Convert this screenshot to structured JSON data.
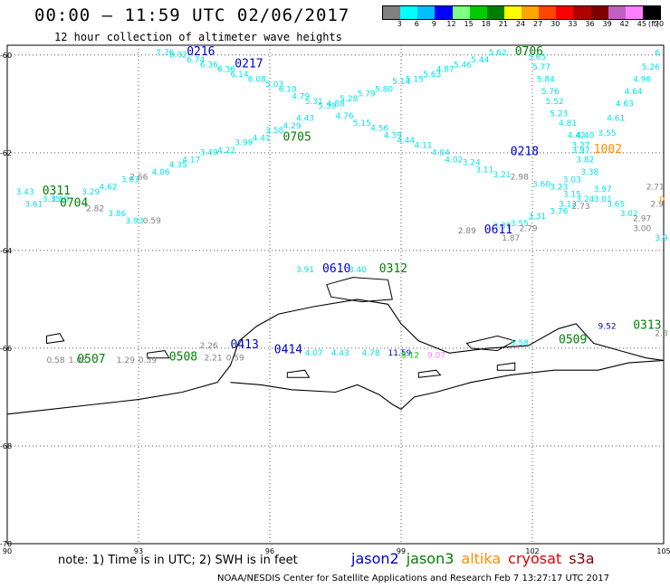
{
  "title": "00:00 – 11:59 UTC 02/06/2017",
  "subtitle": "12 hour collection of altimeter wave heights",
  "colorbar": {
    "colors": [
      "#808080",
      "#00ffff",
      "#00bfff",
      "#0000ff",
      "#80ff80",
      "#00cc00",
      "#008000",
      "#ffff00",
      "#ffa500",
      "#ff4500",
      "#ff0000",
      "#b00000",
      "#800000",
      "#c060c0",
      "#ff80ff",
      "#000000"
    ],
    "labels": [
      "3",
      "6",
      "9",
      "12",
      "15",
      "18",
      "21",
      "24",
      "27",
      "30",
      "33",
      "36",
      "39",
      "42",
      "45",
      "70",
      "(ft)"
    ]
  },
  "axes": {
    "y_labels": [
      "-60",
      "-62",
      "-64",
      "-66",
      "-68",
      "-70"
    ],
    "x_labels": [
      "90",
      "93",
      "96",
      "99",
      "102",
      "105"
    ]
  },
  "annotations": [
    {
      "text": "7.76",
      "color": "#00e5e5",
      "lat": -60.0,
      "lon": 93.4
    },
    {
      "text": "0216",
      "color": "#0000cc",
      "lat": -60.0,
      "lon": 94.1,
      "pass": true
    },
    {
      "text": "8.32",
      "color": "#00e5e5",
      "lat": -60.05,
      "lon": 93.7
    },
    {
      "text": "6.74",
      "color": "#00e5e5",
      "lat": -60.15,
      "lon": 94.1
    },
    {
      "text": "6.36",
      "color": "#00e5e5",
      "lat": -60.25,
      "lon": 94.4
    },
    {
      "text": "0217",
      "color": "#0000cc",
      "lat": -60.25,
      "lon": 95.2,
      "pass": true
    },
    {
      "text": "6.36",
      "color": "#00e5e5",
      "lat": -60.35,
      "lon": 94.8
    },
    {
      "text": "6.14",
      "color": "#00e5e5",
      "lat": -60.45,
      "lon": 95.1
    },
    {
      "text": "6.08",
      "color": "#00e5e5",
      "lat": -60.55,
      "lon": 95.5
    },
    {
      "text": "5.03",
      "color": "#00e5e5",
      "lat": -60.65,
      "lon": 95.9
    },
    {
      "text": "6.10",
      "color": "#00e5e5",
      "lat": -60.75,
      "lon": 96.2
    },
    {
      "text": "4.79",
      "color": "#00e5e5",
      "lat": -60.9,
      "lon": 96.5
    },
    {
      "text": "5.31",
      "color": "#00e5e5",
      "lat": -61.0,
      "lon": 96.8
    },
    {
      "text": "5.39",
      "color": "#00e5e5",
      "lat": -61.1,
      "lon": 97.1
    },
    {
      "text": "4.88",
      "color": "#00e5e5",
      "lat": -61.05,
      "lon": 97.3
    },
    {
      "text": "4.76",
      "color": "#00e5e5",
      "lat": -61.3,
      "lon": 97.5
    },
    {
      "text": "5.15",
      "color": "#00e5e5",
      "lat": -61.45,
      "lon": 97.9
    },
    {
      "text": "4.56",
      "color": "#00e5e5",
      "lat": -61.55,
      "lon": 98.3
    },
    {
      "text": "4.39",
      "color": "#00e5e5",
      "lat": -61.7,
      "lon": 98.6
    },
    {
      "text": "4.44",
      "color": "#00e5e5",
      "lat": -61.8,
      "lon": 98.9
    },
    {
      "text": "4.11",
      "color": "#00e5e5",
      "lat": -61.9,
      "lon": 99.3
    },
    {
      "text": "4.04",
      "color": "#00e5e5",
      "lat": -62.05,
      "lon": 99.7
    },
    {
      "text": "0218",
      "color": "#0000cc",
      "lat": -62.05,
      "lon": 101.5,
      "pass": true
    },
    {
      "text": "4.02",
      "color": "#00e5e5",
      "lat": -62.2,
      "lon": 100.0
    },
    {
      "text": "3.24",
      "color": "#00e5e5",
      "lat": -62.25,
      "lon": 100.4
    },
    {
      "text": "3.11",
      "color": "#00e5e5",
      "lat": -62.4,
      "lon": 100.7
    },
    {
      "text": "3.21",
      "color": "#00e5e5",
      "lat": -62.5,
      "lon": 101.1
    },
    {
      "text": "2.98",
      "color": "#808080",
      "lat": -62.55,
      "lon": 101.5
    },
    {
      "text": "3.60",
      "color": "#00e5e5",
      "lat": -62.7,
      "lon": 102.0
    },
    {
      "text": "3.23",
      "color": "#00e5e5",
      "lat": -62.75,
      "lon": 102.4
    },
    {
      "text": "3.15",
      "color": "#00e5e5",
      "lat": -62.9,
      "lon": 102.7
    },
    {
      "text": "3.24",
      "color": "#00e5e5",
      "lat": -63.0,
      "lon": 103.0
    },
    {
      "text": "3.12",
      "color": "#00e5e5",
      "lat": -63.1,
      "lon": 102.6
    },
    {
      "text": "2.73",
      "color": "#808080",
      "lat": -63.15,
      "lon": 102.9
    },
    {
      "text": "3.76",
      "color": "#00e5e5",
      "lat": -63.25,
      "lon": 102.4
    },
    {
      "text": "3.31",
      "color": "#00e5e5",
      "lat": -63.35,
      "lon": 101.9
    },
    {
      "text": "3.55",
      "color": "#00e5e5",
      "lat": -63.5,
      "lon": 101.5
    },
    {
      "text": "3.37",
      "color": "#00e5e5",
      "lat": -63.55,
      "lon": 101.1
    },
    {
      "text": "2.79",
      "color": "#808080",
      "lat": -63.6,
      "lon": 101.7
    },
    {
      "text": "2.89",
      "color": "#808080",
      "lat": -63.65,
      "lon": 100.3
    },
    {
      "text": "0611",
      "color": "#0000cc",
      "lat": -63.65,
      "lon": 100.9,
      "pass": true
    },
    {
      "text": "1.87",
      "color": "#808080",
      "lat": -63.8,
      "lon": 101.3
    },
    {
      "text": "0706",
      "color": "#008000",
      "lat": -60.0,
      "lon": 101.6,
      "pass": true
    },
    {
      "text": "5.62",
      "color": "#00e5e5",
      "lat": -60.0,
      "lon": 101.0
    },
    {
      "text": "5.65",
      "color": "#00e5e5",
      "lat": -60.1,
      "lon": 101.9
    },
    {
      "text": "5.77",
      "color": "#00e5e5",
      "lat": -60.3,
      "lon": 102.0
    },
    {
      "text": "5.84",
      "color": "#00e5e5",
      "lat": -60.55,
      "lon": 102.1
    },
    {
      "text": "5.76",
      "color": "#00e5e5",
      "lat": -60.8,
      "lon": 102.2
    },
    {
      "text": "5.52",
      "color": "#00e5e5",
      "lat": -61.0,
      "lon": 102.3
    },
    {
      "text": "5.23",
      "color": "#00e5e5",
      "lat": -61.25,
      "lon": 102.4
    },
    {
      "text": "4.81",
      "color": "#00e5e5",
      "lat": -61.45,
      "lon": 102.6
    },
    {
      "text": "4.42",
      "color": "#00e5e5",
      "lat": -61.7,
      "lon": 102.8
    },
    {
      "text": "4.40",
      "color": "#00e5e5",
      "lat": -61.7,
      "lon": 103.0
    },
    {
      "text": "3.27",
      "color": "#00e5e5",
      "lat": -61.9,
      "lon": 102.9
    },
    {
      "text": "3.97",
      "color": "#00e5e5",
      "lat": -62.0,
      "lon": 102.9
    },
    {
      "text": "1002",
      "color": "#ff8c00",
      "lat": -62.0,
      "lon": 103.4,
      "pass": true
    },
    {
      "text": "3.82",
      "color": "#00e5e5",
      "lat": -62.2,
      "lon": 103.0
    },
    {
      "text": "3.38",
      "color": "#00e5e5",
      "lat": -62.45,
      "lon": 103.1
    },
    {
      "text": "3.03",
      "color": "#00e5e5",
      "lat": -62.6,
      "lon": 102.7
    },
    {
      "text": "3.97",
      "color": "#00e5e5",
      "lat": -62.8,
      "lon": 103.4
    },
    {
      "text": "3.01",
      "color": "#00e5e5",
      "lat": -63.0,
      "lon": 103.4
    },
    {
      "text": "3.65",
      "color": "#00e5e5",
      "lat": -63.1,
      "lon": 103.7
    },
    {
      "text": "3.02",
      "color": "#00e5e5",
      "lat": -63.3,
      "lon": 104.0
    },
    {
      "text": "2.97",
      "color": "#808080",
      "lat": -63.4,
      "lon": 104.3
    },
    {
      "text": "3.00",
      "color": "#808080",
      "lat": -63.6,
      "lon": 104.3
    },
    {
      "text": "3.9",
      "color": "#00e5e5",
      "lat": -63.8,
      "lon": 104.8
    },
    {
      "text": "2.71",
      "color": "#808080",
      "lat": -62.75,
      "lon": 104.6
    },
    {
      "text": "2.9",
      "color": "#808080",
      "lat": -63.1,
      "lon": 104.7
    },
    {
      "text": "3.55",
      "color": "#00e5e5",
      "lat": -61.65,
      "lon": 103.5
    },
    {
      "text": "4.61",
      "color": "#00e5e5",
      "lat": -61.35,
      "lon": 103.7
    },
    {
      "text": "4.63",
      "color": "#00e5e5",
      "lat": -61.05,
      "lon": 103.9
    },
    {
      "text": "4.64",
      "color": "#00e5e5",
      "lat": -60.8,
      "lon": 104.1
    },
    {
      "text": "4.96",
      "color": "#00e5e5",
      "lat": -60.55,
      "lon": 104.3
    },
    {
      "text": "5.26",
      "color": "#00e5e5",
      "lat": -60.3,
      "lon": 104.5
    },
    {
      "text": "6",
      "color": "#00e5e5",
      "lat": -60.0,
      "lon": 104.8
    },
    {
      "text": "0",
      "color": "#ff8c00",
      "lat": -63.0,
      "lon": 104.9
    },
    {
      "text": "5.44",
      "color": "#00e5e5",
      "lat": -60.15,
      "lon": 100.6
    },
    {
      "text": "5.46",
      "color": "#00e5e5",
      "lat": -60.25,
      "lon": 100.2
    },
    {
      "text": "4.87",
      "color": "#00e5e5",
      "lat": -60.35,
      "lon": 99.8
    },
    {
      "text": "5.63",
      "color": "#00e5e5",
      "lat": -60.45,
      "lon": 99.5
    },
    {
      "text": "5.15",
      "color": "#00e5e5",
      "lat": -60.55,
      "lon": 99.1
    },
    {
      "text": "5.14",
      "color": "#00e5e5",
      "lat": -60.6,
      "lon": 98.8
    },
    {
      "text": "5.80",
      "color": "#00e5e5",
      "lat": -60.75,
      "lon": 98.4
    },
    {
      "text": "5.79",
      "color": "#00e5e5",
      "lat": -60.85,
      "lon": 98.0
    },
    {
      "text": "5.28",
      "color": "#00e5e5",
      "lat": -60.95,
      "lon": 97.6
    },
    {
      "text": "4.43",
      "color": "#00e5e5",
      "lat": -61.35,
      "lon": 96.6
    },
    {
      "text": "4.29",
      "color": "#00e5e5",
      "lat": -61.5,
      "lon": 96.3
    },
    {
      "text": "3.58",
      "color": "#00e5e5",
      "lat": -61.6,
      "lon": 95.9
    },
    {
      "text": "0705",
      "color": "#008000",
      "lat": -61.75,
      "lon": 96.3,
      "pass": true
    },
    {
      "text": "4.41",
      "color": "#00e5e5",
      "lat": -61.75,
      "lon": 95.6
    },
    {
      "text": "3.99",
      "color": "#00e5e5",
      "lat": -61.85,
      "lon": 95.2
    },
    {
      "text": "4.22",
      "color": "#00e5e5",
      "lat": -62.0,
      "lon": 94.8
    },
    {
      "text": "3.49",
      "color": "#00e5e5",
      "lat": -62.05,
      "lon": 94.4
    },
    {
      "text": "4.17",
      "color": "#00e5e5",
      "lat": -62.2,
      "lon": 94.0
    },
    {
      "text": "4.35",
      "color": "#00e5e5",
      "lat": -62.3,
      "lon": 93.7
    },
    {
      "text": "4.06",
      "color": "#00e5e5",
      "lat": -62.45,
      "lon": 93.3
    },
    {
      "text": "2.66",
      "color": "#808080",
      "lat": -62.55,
      "lon": 92.8
    },
    {
      "text": "3.03",
      "color": "#00e5e5",
      "lat": -62.6,
      "lon": 92.6
    },
    {
      "text": "4.62",
      "color": "#00e5e5",
      "lat": -62.75,
      "lon": 92.1
    },
    {
      "text": "3.29",
      "color": "#00e5e5",
      "lat": -62.85,
      "lon": 91.7
    },
    {
      "text": "0311",
      "color": "#008000",
      "lat": -62.85,
      "lon": 90.8,
      "pass": true
    },
    {
      "text": "3.43",
      "color": "#00e5e5",
      "lat": -62.85,
      "lon": 90.2
    },
    {
      "text": "3.59",
      "color": "#00e5e5",
      "lat": -63.0,
      "lon": 91.0
    },
    {
      "text": "3.35",
      "color": "#00e5e5",
      "lat": -63.0,
      "lon": 90.8
    },
    {
      "text": "3.61",
      "color": "#00e5e5",
      "lat": -63.1,
      "lon": 90.4
    },
    {
      "text": "0704",
      "color": "#008000",
      "lat": -63.1,
      "lon": 91.2,
      "pass": true
    },
    {
      "text": "2.82",
      "color": "#808080",
      "lat": -63.2,
      "lon": 91.8
    },
    {
      "text": "3.86",
      "color": "#00e5e5",
      "lat": -63.3,
      "lon": 92.3
    },
    {
      "text": "3.93",
      "color": "#00e5e5",
      "lat": -63.45,
      "lon": 92.7
    },
    {
      "text": "0.59",
      "color": "#808080",
      "lat": -63.45,
      "lon": 93.1
    },
    {
      "text": "3.91",
      "color": "#00e5e5",
      "lat": -64.45,
      "lon": 96.6
    },
    {
      "text": "0610",
      "color": "#0000cc",
      "lat": -64.45,
      "lon": 97.2,
      "pass": true
    },
    {
      "text": "3.40",
      "color": "#00e5e5",
      "lat": -64.45,
      "lon": 97.8
    },
    {
      "text": "0312",
      "color": "#008000",
      "lat": -64.45,
      "lon": 98.5,
      "pass": true
    },
    {
      "text": "9.52",
      "color": "#0000cc",
      "lat": -65.6,
      "lon": 103.5
    },
    {
      "text": "0313",
      "color": "#008000",
      "lat": -65.6,
      "lon": 104.3,
      "pass": true
    },
    {
      "text": "2.3",
      "color": "#808080",
      "lat": -65.75,
      "lon": 104.8
    },
    {
      "text": "0509",
      "color": "#008000",
      "lat": -65.9,
      "lon": 102.6,
      "pass": true
    },
    {
      "text": "5.58",
      "color": "#00e5e5",
      "lat": -65.95,
      "lon": 101.5
    },
    {
      "text": "2.26",
      "color": "#808080",
      "lat": -66.0,
      "lon": 94.4
    },
    {
      "text": "0413",
      "color": "#0000cc",
      "lat": -66.0,
      "lon": 95.1,
      "pass": true
    },
    {
      "text": "0414",
      "color": "#0000cc",
      "lat": -66.1,
      "lon": 96.1,
      "pass": true
    },
    {
      "text": "0.58",
      "color": "#808080",
      "lat": -66.3,
      "lon": 90.9
    },
    {
      "text": "1.03",
      "color": "#808080",
      "lat": -66.3,
      "lon": 91.4
    },
    {
      "text": "0507",
      "color": "#008000",
      "lat": -66.3,
      "lon": 91.6,
      "pass": true
    },
    {
      "text": "1.29",
      "color": "#808080",
      "lat": -66.3,
      "lon": 92.5
    },
    {
      "text": "0.59",
      "color": "#808080",
      "lat": -66.3,
      "lon": 93.0
    },
    {
      "text": "0508",
      "color": "#008000",
      "lat": -66.25,
      "lon": 93.7,
      "pass": true
    },
    {
      "text": "2.21",
      "color": "#808080",
      "lat": -66.25,
      "lon": 94.5
    },
    {
      "text": "0.59",
      "color": "#808080",
      "lat": -66.25,
      "lon": 95.0
    },
    {
      "text": "4.07",
      "color": "#00e5e5",
      "lat": -66.15,
      "lon": 96.8
    },
    {
      "text": "4.43",
      "color": "#00e5e5",
      "lat": -66.15,
      "lon": 97.4
    },
    {
      "text": "4.78",
      "color": "#00e5e5",
      "lat": -66.15,
      "lon": 98.1
    },
    {
      "text": "11.59",
      "color": "#0000cc",
      "lat": -66.15,
      "lon": 98.7
    },
    {
      "text": "5.12",
      "color": "#00cc00",
      "lat": -66.2,
      "lon": 99.0
    },
    {
      "text": "9.07",
      "color": "#ff80ff",
      "lat": -66.2,
      "lon": 99.6
    }
  ],
  "note": "note: 1) Time is in UTC; 2) SWH is in feet",
  "legend": [
    {
      "label": "jason2",
      "color": "#0000cc"
    },
    {
      "label": "jason3",
      "color": "#008000"
    },
    {
      "label": "altika",
      "color": "#ff8c00"
    },
    {
      "label": "cryosat",
      "color": "#e00000"
    },
    {
      "label": "s3a",
      "color": "#800000"
    }
  ],
  "footer": "NOAA/NESDIS Center for Satellite Applications and Research   Feb  7 13:27:17 UTC 2017"
}
